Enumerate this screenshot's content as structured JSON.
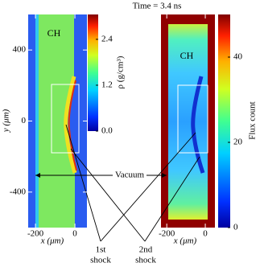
{
  "title": "Time = 3.4 ns",
  "annotations": {
    "vacuum": "Vacuum",
    "first_shock": [
      "1st",
      "shock"
    ],
    "second_shock": [
      "2nd",
      "shock"
    ]
  },
  "chart_data": [
    {
      "type": "heatmap",
      "annotation": "CH",
      "xlabel": "x (μm)",
      "ylabel": "y (μm)",
      "xlim": [
        -237,
        61
      ],
      "ylim": [
        -600,
        600
      ],
      "xticks": [
        -200,
        0
      ],
      "yticks": [
        -400,
        0,
        400
      ],
      "colorbar": {
        "label": "ρ (g/cm³)",
        "lim": [
          0,
          3.05
        ],
        "ticks": [
          {
            "value": 0,
            "label": "0.0"
          },
          1.2,
          2.4
        ]
      }
    },
    {
      "type": "heatmap",
      "annotation": "CH",
      "xlabel": "x (μm)",
      "xlim": [
        -230,
        50
      ],
      "xticks": [
        -200,
        0
      ],
      "colorbar": {
        "label": "Flux count",
        "lim": [
          0,
          50
        ],
        "ticks": [
          0,
          20,
          40
        ]
      }
    }
  ]
}
